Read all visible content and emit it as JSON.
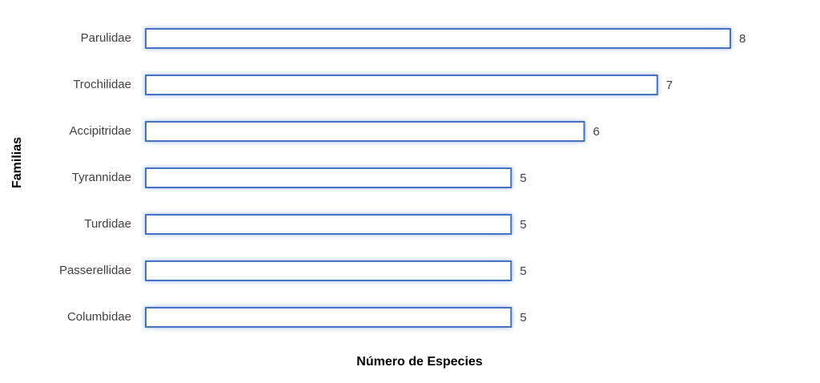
{
  "chart_data": {
    "type": "bar",
    "orientation": "horizontal",
    "x_label": "Número de Especies",
    "y_label": "Familias",
    "categories": [
      "Parulidae",
      "Trochilidae",
      "Accipitridae",
      "Tyrannidae",
      "Turdidae",
      "Passerellidae",
      "Columbidae"
    ],
    "values": [
      8,
      7,
      6,
      5,
      5,
      5,
      5
    ],
    "color": "#4472c4",
    "xlim": [
      0,
      8
    ],
    "grid": false
  }
}
